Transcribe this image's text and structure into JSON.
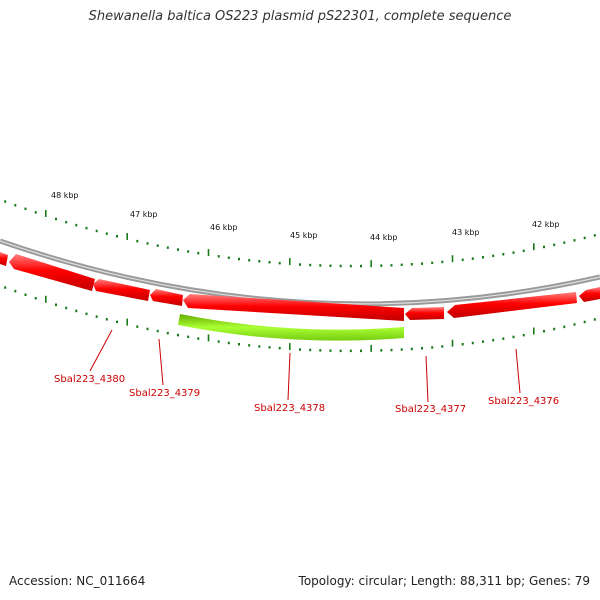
{
  "title": "Shewanella baltica OS223 plasmid pS22301, complete sequence",
  "footer": {
    "accession": "Accession: NC_011664",
    "summary": "Topology: circular; Length: 88,311 bp; Genes: 79"
  },
  "kbp_labels": [
    "48 kbp",
    "47 kbp",
    "46 kbp",
    "45 kbp",
    "44 kbp",
    "43 kbp",
    "42 kbp"
  ],
  "genes": [
    {
      "label": "Sbal223_4380",
      "color": "#ff0000",
      "strand": "minus"
    },
    {
      "label": "Sbal223_4379",
      "color": "#ff0000",
      "strand": "minus"
    },
    {
      "label": "Sbal223_4378",
      "color": "#ff0000",
      "strand": "minus"
    },
    {
      "label": "Sbal223_4377",
      "color": "#ff0000",
      "strand": "minus"
    },
    {
      "label": "Sbal223_4376",
      "color": "#ff0000",
      "strand": "minus"
    }
  ],
  "colors": {
    "backbone": "#8a8a8a",
    "gene_forward": "#ff0000",
    "gene_highlight": "#99ee22",
    "ticks": "#1a7a1a",
    "label": "#cc0000"
  }
}
